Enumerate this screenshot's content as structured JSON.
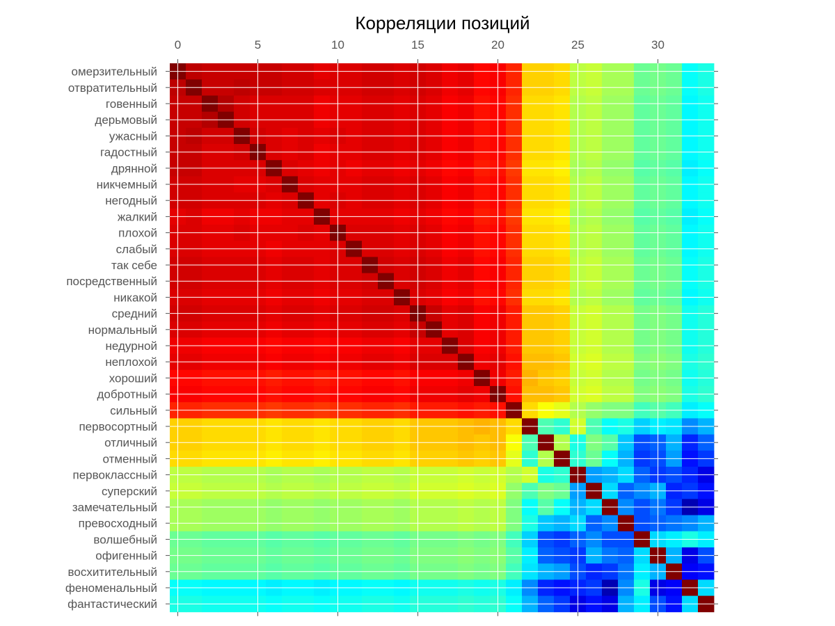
{
  "chart_data": {
    "type": "heatmap",
    "title": "Корреляции позиций",
    "row_labels": [
      "омерзительный",
      "отвратительный",
      "говенный",
      "дерьмовый",
      "ужасный",
      "гадостный",
      "дрянной",
      "никчемный",
      "негодный",
      "жалкий",
      "плохой",
      "слабый",
      "так себе",
      "посредственный",
      "никакой",
      "средний",
      "нормальный",
      "недурной",
      "неплохой",
      "хороший",
      "добротный",
      "сильный",
      "первосортный",
      "отличный",
      "отменный",
      "первоклассный",
      "суперский",
      "замечательный",
      "превосходный",
      "волшебный",
      "офигенный",
      "восхитительный",
      "феноменальный",
      "фантастический"
    ],
    "x_ticks": [
      0,
      5,
      10,
      15,
      20,
      25,
      30
    ],
    "x_tick_labels": [
      "0",
      "5",
      "10",
      "15",
      "20",
      "25",
      "30"
    ],
    "colormap": "jet",
    "value_range": [
      0,
      1
    ],
    "diagonal": 1.0,
    "grid": true,
    "colors": {
      "low": "#00008f",
      "mid": "#80ff80",
      "high": "#800000"
    },
    "values": [
      [
        1.0,
        0.94,
        0.93,
        0.93,
        0.93,
        0.93,
        0.93,
        0.92,
        0.92,
        0.9,
        0.91,
        0.91,
        0.92,
        0.92,
        0.91,
        0.92,
        0.91,
        0.89,
        0.9,
        0.87,
        0.88,
        0.84,
        0.67,
        0.67,
        0.66,
        0.56,
        0.57,
        0.54,
        0.54,
        0.48,
        0.49,
        0.48,
        0.38,
        0.4
      ],
      [
        0.94,
        1.0,
        0.93,
        0.93,
        0.94,
        0.93,
        0.93,
        0.92,
        0.92,
        0.91,
        0.91,
        0.91,
        0.92,
        0.92,
        0.91,
        0.92,
        0.91,
        0.89,
        0.9,
        0.87,
        0.88,
        0.84,
        0.67,
        0.67,
        0.66,
        0.56,
        0.57,
        0.54,
        0.54,
        0.48,
        0.49,
        0.48,
        0.38,
        0.4
      ],
      [
        0.93,
        0.93,
        1.0,
        0.95,
        0.92,
        0.91,
        0.91,
        0.91,
        0.91,
        0.89,
        0.9,
        0.9,
        0.91,
        0.91,
        0.9,
        0.91,
        0.9,
        0.88,
        0.89,
        0.86,
        0.87,
        0.83,
        0.66,
        0.66,
        0.65,
        0.55,
        0.56,
        0.53,
        0.53,
        0.47,
        0.48,
        0.47,
        0.37,
        0.39
      ],
      [
        0.93,
        0.93,
        0.95,
        1.0,
        0.92,
        0.91,
        0.91,
        0.91,
        0.91,
        0.89,
        0.9,
        0.9,
        0.91,
        0.91,
        0.9,
        0.91,
        0.9,
        0.88,
        0.89,
        0.86,
        0.87,
        0.83,
        0.66,
        0.66,
        0.65,
        0.55,
        0.56,
        0.53,
        0.53,
        0.47,
        0.48,
        0.47,
        0.37,
        0.39
      ],
      [
        0.93,
        0.94,
        0.92,
        0.92,
        1.0,
        0.92,
        0.91,
        0.9,
        0.91,
        0.9,
        0.91,
        0.9,
        0.91,
        0.91,
        0.9,
        0.91,
        0.9,
        0.88,
        0.89,
        0.86,
        0.87,
        0.83,
        0.66,
        0.66,
        0.65,
        0.55,
        0.56,
        0.53,
        0.53,
        0.47,
        0.48,
        0.47,
        0.37,
        0.39
      ],
      [
        0.93,
        0.93,
        0.91,
        0.91,
        0.92,
        1.0,
        0.91,
        0.9,
        0.91,
        0.89,
        0.9,
        0.9,
        0.91,
        0.91,
        0.9,
        0.91,
        0.9,
        0.88,
        0.89,
        0.86,
        0.87,
        0.83,
        0.66,
        0.66,
        0.65,
        0.55,
        0.56,
        0.53,
        0.53,
        0.47,
        0.48,
        0.47,
        0.37,
        0.39
      ],
      [
        0.93,
        0.93,
        0.91,
        0.91,
        0.91,
        0.91,
        1.0,
        0.91,
        0.9,
        0.89,
        0.9,
        0.89,
        0.9,
        0.9,
        0.89,
        0.9,
        0.89,
        0.87,
        0.88,
        0.85,
        0.86,
        0.82,
        0.65,
        0.65,
        0.64,
        0.54,
        0.55,
        0.52,
        0.52,
        0.46,
        0.47,
        0.46,
        0.36,
        0.38
      ],
      [
        0.92,
        0.92,
        0.91,
        0.91,
        0.9,
        0.9,
        0.91,
        1.0,
        0.91,
        0.9,
        0.9,
        0.9,
        0.91,
        0.91,
        0.9,
        0.91,
        0.9,
        0.88,
        0.89,
        0.86,
        0.87,
        0.83,
        0.66,
        0.66,
        0.65,
        0.55,
        0.56,
        0.53,
        0.53,
        0.47,
        0.48,
        0.47,
        0.37,
        0.39
      ],
      [
        0.92,
        0.92,
        0.91,
        0.91,
        0.91,
        0.91,
        0.9,
        0.91,
        1.0,
        0.9,
        0.91,
        0.9,
        0.91,
        0.91,
        0.9,
        0.91,
        0.9,
        0.88,
        0.89,
        0.86,
        0.87,
        0.83,
        0.66,
        0.66,
        0.65,
        0.55,
        0.56,
        0.53,
        0.53,
        0.47,
        0.48,
        0.47,
        0.37,
        0.39
      ],
      [
        0.9,
        0.91,
        0.89,
        0.89,
        0.9,
        0.89,
        0.89,
        0.9,
        0.9,
        1.0,
        0.9,
        0.9,
        0.9,
        0.9,
        0.89,
        0.9,
        0.89,
        0.87,
        0.88,
        0.85,
        0.86,
        0.82,
        0.65,
        0.65,
        0.64,
        0.54,
        0.55,
        0.52,
        0.52,
        0.46,
        0.47,
        0.46,
        0.36,
        0.38
      ],
      [
        0.91,
        0.91,
        0.9,
        0.9,
        0.91,
        0.9,
        0.9,
        0.9,
        0.91,
        0.9,
        1.0,
        0.91,
        0.91,
        0.91,
        0.9,
        0.91,
        0.9,
        0.88,
        0.89,
        0.86,
        0.87,
        0.83,
        0.66,
        0.66,
        0.65,
        0.55,
        0.56,
        0.53,
        0.53,
        0.47,
        0.48,
        0.47,
        0.37,
        0.39
      ],
      [
        0.91,
        0.91,
        0.9,
        0.9,
        0.9,
        0.9,
        0.89,
        0.9,
        0.9,
        0.9,
        0.91,
        1.0,
        0.91,
        0.91,
        0.9,
        0.91,
        0.9,
        0.88,
        0.89,
        0.86,
        0.87,
        0.83,
        0.66,
        0.66,
        0.65,
        0.55,
        0.56,
        0.53,
        0.53,
        0.47,
        0.48,
        0.47,
        0.37,
        0.39
      ],
      [
        0.92,
        0.92,
        0.91,
        0.91,
        0.91,
        0.91,
        0.9,
        0.91,
        0.91,
        0.9,
        0.91,
        0.91,
        1.0,
        0.92,
        0.91,
        0.92,
        0.91,
        0.89,
        0.9,
        0.87,
        0.88,
        0.84,
        0.67,
        0.67,
        0.66,
        0.56,
        0.57,
        0.54,
        0.54,
        0.48,
        0.49,
        0.48,
        0.38,
        0.4
      ],
      [
        0.92,
        0.92,
        0.91,
        0.91,
        0.91,
        0.91,
        0.9,
        0.91,
        0.91,
        0.9,
        0.91,
        0.91,
        0.92,
        1.0,
        0.91,
        0.92,
        0.91,
        0.89,
        0.9,
        0.87,
        0.88,
        0.84,
        0.67,
        0.67,
        0.66,
        0.56,
        0.57,
        0.54,
        0.54,
        0.48,
        0.49,
        0.48,
        0.38,
        0.4
      ],
      [
        0.91,
        0.91,
        0.9,
        0.9,
        0.9,
        0.9,
        0.89,
        0.9,
        0.9,
        0.89,
        0.9,
        0.9,
        0.91,
        0.91,
        1.0,
        0.91,
        0.9,
        0.88,
        0.89,
        0.86,
        0.87,
        0.83,
        0.66,
        0.66,
        0.65,
        0.55,
        0.56,
        0.53,
        0.53,
        0.47,
        0.48,
        0.47,
        0.37,
        0.39
      ],
      [
        0.92,
        0.92,
        0.91,
        0.91,
        0.91,
        0.91,
        0.9,
        0.91,
        0.91,
        0.9,
        0.91,
        0.91,
        0.92,
        0.92,
        0.91,
        1.0,
        0.93,
        0.9,
        0.91,
        0.88,
        0.89,
        0.85,
        0.68,
        0.68,
        0.67,
        0.57,
        0.58,
        0.55,
        0.55,
        0.49,
        0.5,
        0.49,
        0.39,
        0.41
      ],
      [
        0.91,
        0.91,
        0.9,
        0.9,
        0.9,
        0.9,
        0.89,
        0.9,
        0.9,
        0.89,
        0.9,
        0.9,
        0.91,
        0.91,
        0.9,
        0.93,
        1.0,
        0.9,
        0.91,
        0.88,
        0.89,
        0.85,
        0.68,
        0.68,
        0.67,
        0.57,
        0.58,
        0.55,
        0.55,
        0.49,
        0.5,
        0.49,
        0.39,
        0.41
      ],
      [
        0.89,
        0.89,
        0.88,
        0.88,
        0.88,
        0.88,
        0.87,
        0.88,
        0.88,
        0.87,
        0.88,
        0.88,
        0.89,
        0.89,
        0.88,
        0.9,
        0.9,
        1.0,
        0.91,
        0.88,
        0.89,
        0.85,
        0.68,
        0.68,
        0.67,
        0.57,
        0.58,
        0.55,
        0.55,
        0.49,
        0.5,
        0.49,
        0.39,
        0.41
      ],
      [
        0.9,
        0.9,
        0.89,
        0.89,
        0.89,
        0.89,
        0.88,
        0.89,
        0.89,
        0.88,
        0.89,
        0.89,
        0.9,
        0.9,
        0.89,
        0.91,
        0.91,
        0.91,
        1.0,
        0.89,
        0.9,
        0.86,
        0.69,
        0.69,
        0.68,
        0.58,
        0.59,
        0.56,
        0.56,
        0.5,
        0.51,
        0.5,
        0.4,
        0.42
      ],
      [
        0.87,
        0.87,
        0.86,
        0.86,
        0.86,
        0.86,
        0.85,
        0.86,
        0.86,
        0.85,
        0.86,
        0.86,
        0.87,
        0.87,
        0.86,
        0.88,
        0.88,
        0.88,
        0.89,
        1.0,
        0.89,
        0.85,
        0.7,
        0.68,
        0.67,
        0.57,
        0.58,
        0.55,
        0.55,
        0.49,
        0.5,
        0.49,
        0.39,
        0.41
      ],
      [
        0.88,
        0.88,
        0.87,
        0.87,
        0.87,
        0.87,
        0.86,
        0.87,
        0.87,
        0.86,
        0.87,
        0.87,
        0.88,
        0.88,
        0.87,
        0.89,
        0.89,
        0.89,
        0.9,
        0.89,
        1.0,
        0.86,
        0.69,
        0.69,
        0.68,
        0.58,
        0.59,
        0.56,
        0.56,
        0.5,
        0.51,
        0.5,
        0.4,
        0.42
      ],
      [
        0.84,
        0.84,
        0.83,
        0.83,
        0.83,
        0.83,
        0.82,
        0.83,
        0.83,
        0.82,
        0.83,
        0.83,
        0.84,
        0.84,
        0.83,
        0.85,
        0.85,
        0.85,
        0.86,
        0.85,
        0.86,
        1.0,
        0.66,
        0.62,
        0.6,
        0.55,
        0.52,
        0.5,
        0.5,
        0.44,
        0.46,
        0.44,
        0.36,
        0.38
      ],
      [
        0.67,
        0.67,
        0.66,
        0.66,
        0.66,
        0.66,
        0.65,
        0.66,
        0.66,
        0.65,
        0.66,
        0.66,
        0.67,
        0.67,
        0.66,
        0.68,
        0.68,
        0.68,
        0.69,
        0.7,
        0.69,
        0.66,
        1.0,
        0.45,
        0.42,
        0.58,
        0.45,
        0.38,
        0.4,
        0.33,
        0.36,
        0.35,
        0.26,
        0.3
      ],
      [
        0.67,
        0.67,
        0.66,
        0.66,
        0.66,
        0.66,
        0.65,
        0.66,
        0.66,
        0.65,
        0.66,
        0.66,
        0.67,
        0.67,
        0.66,
        0.68,
        0.68,
        0.68,
        0.69,
        0.68,
        0.69,
        0.62,
        0.45,
        1.0,
        0.55,
        0.4,
        0.5,
        0.46,
        0.32,
        0.2,
        0.22,
        0.3,
        0.16,
        0.22
      ],
      [
        0.66,
        0.66,
        0.65,
        0.65,
        0.65,
        0.65,
        0.64,
        0.65,
        0.65,
        0.64,
        0.65,
        0.65,
        0.66,
        0.66,
        0.65,
        0.67,
        0.67,
        0.67,
        0.68,
        0.67,
        0.68,
        0.6,
        0.42,
        0.55,
        1.0,
        0.42,
        0.48,
        0.38,
        0.3,
        0.18,
        0.2,
        0.28,
        0.14,
        0.18
      ],
      [
        0.56,
        0.56,
        0.55,
        0.55,
        0.55,
        0.55,
        0.54,
        0.55,
        0.55,
        0.54,
        0.55,
        0.55,
        0.56,
        0.56,
        0.55,
        0.57,
        0.57,
        0.57,
        0.58,
        0.57,
        0.58,
        0.55,
        0.58,
        0.4,
        0.42,
        1.0,
        0.28,
        0.3,
        0.34,
        0.22,
        0.18,
        0.2,
        0.16,
        0.1
      ],
      [
        0.57,
        0.57,
        0.56,
        0.56,
        0.56,
        0.56,
        0.55,
        0.56,
        0.56,
        0.55,
        0.56,
        0.56,
        0.57,
        0.57,
        0.56,
        0.58,
        0.58,
        0.58,
        0.59,
        0.58,
        0.59,
        0.52,
        0.45,
        0.5,
        0.48,
        0.28,
        1.0,
        0.34,
        0.22,
        0.26,
        0.3,
        0.16,
        0.18,
        0.14
      ],
      [
        0.54,
        0.54,
        0.53,
        0.53,
        0.53,
        0.53,
        0.52,
        0.53,
        0.53,
        0.52,
        0.53,
        0.53,
        0.54,
        0.54,
        0.53,
        0.55,
        0.55,
        0.55,
        0.56,
        0.55,
        0.56,
        0.5,
        0.38,
        0.46,
        0.38,
        0.3,
        0.34,
        1.0,
        0.26,
        0.2,
        0.24,
        0.18,
        0.05,
        0.1
      ],
      [
        0.54,
        0.54,
        0.53,
        0.53,
        0.53,
        0.53,
        0.52,
        0.53,
        0.53,
        0.52,
        0.53,
        0.53,
        0.54,
        0.54,
        0.53,
        0.55,
        0.55,
        0.55,
        0.56,
        0.55,
        0.56,
        0.5,
        0.4,
        0.32,
        0.3,
        0.34,
        0.22,
        0.26,
        1.0,
        0.2,
        0.22,
        0.24,
        0.26,
        0.3
      ],
      [
        0.48,
        0.48,
        0.47,
        0.47,
        0.47,
        0.47,
        0.46,
        0.47,
        0.47,
        0.46,
        0.47,
        0.47,
        0.48,
        0.48,
        0.47,
        0.49,
        0.49,
        0.49,
        0.5,
        0.49,
        0.5,
        0.44,
        0.33,
        0.2,
        0.18,
        0.22,
        0.26,
        0.2,
        0.2,
        1.0,
        0.34,
        0.36,
        0.4,
        0.36
      ],
      [
        0.49,
        0.49,
        0.48,
        0.48,
        0.48,
        0.48,
        0.47,
        0.48,
        0.48,
        0.47,
        0.48,
        0.48,
        0.49,
        0.49,
        0.48,
        0.5,
        0.5,
        0.5,
        0.51,
        0.5,
        0.51,
        0.46,
        0.36,
        0.22,
        0.2,
        0.18,
        0.3,
        0.24,
        0.22,
        0.34,
        1.0,
        0.3,
        0.1,
        0.2
      ],
      [
        0.48,
        0.48,
        0.47,
        0.47,
        0.47,
        0.47,
        0.46,
        0.47,
        0.47,
        0.46,
        0.47,
        0.47,
        0.48,
        0.48,
        0.47,
        0.49,
        0.49,
        0.49,
        0.5,
        0.49,
        0.5,
        0.44,
        0.35,
        0.3,
        0.28,
        0.2,
        0.16,
        0.18,
        0.24,
        0.36,
        0.3,
        1.0,
        0.12,
        0.14
      ],
      [
        0.38,
        0.38,
        0.37,
        0.37,
        0.37,
        0.37,
        0.36,
        0.37,
        0.37,
        0.36,
        0.37,
        0.37,
        0.38,
        0.38,
        0.37,
        0.39,
        0.39,
        0.39,
        0.4,
        0.39,
        0.4,
        0.36,
        0.26,
        0.16,
        0.14,
        0.16,
        0.18,
        0.05,
        0.26,
        0.4,
        0.1,
        0.12,
        1.0,
        0.34
      ],
      [
        0.4,
        0.4,
        0.39,
        0.39,
        0.39,
        0.39,
        0.38,
        0.39,
        0.39,
        0.38,
        0.39,
        0.39,
        0.4,
        0.4,
        0.39,
        0.41,
        0.41,
        0.41,
        0.42,
        0.41,
        0.42,
        0.38,
        0.3,
        0.22,
        0.18,
        0.1,
        0.14,
        0.1,
        0.3,
        0.36,
        0.2,
        0.14,
        0.34,
        1.0
      ]
    ]
  }
}
